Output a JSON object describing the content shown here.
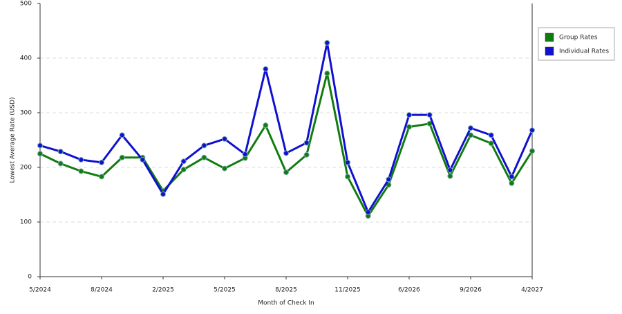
{
  "chart_data": {
    "type": "line",
    "x_label": "Month of Check In",
    "y_label": "Lowest Average Rate (USD)",
    "categories": [
      "5/2024",
      null,
      null,
      "8/2024",
      null,
      null,
      "2/2025",
      null,
      null,
      "5/2025",
      null,
      null,
      "8/2025",
      null,
      null,
      "11/2025",
      null,
      null,
      "6/2026",
      null,
      null,
      "9/2026",
      null,
      null,
      "4/2027"
    ],
    "series": [
      {
        "name": "Group Rates",
        "color": "#107c10",
        "values": [
          225,
          207,
          193,
          183,
          218,
          218,
          157,
          196,
          218,
          198,
          217,
          277,
          191,
          223,
          372,
          183,
          111,
          168,
          274,
          280,
          184,
          259,
          244,
          171,
          230
        ]
      },
      {
        "name": "Individual Rates",
        "color": "#1010d0",
        "values": [
          240,
          229,
          214,
          209,
          259,
          214,
          151,
          211,
          240,
          252,
          224,
          380,
          226,
          245,
          428,
          209,
          118,
          178,
          296,
          296,
          195,
          272,
          259,
          183,
          268
        ]
      }
    ],
    "ylim": [
      0,
      500
    ],
    "yticks": [
      0,
      100,
      200,
      300,
      400,
      500
    ],
    "grid": true,
    "legend": "right"
  }
}
